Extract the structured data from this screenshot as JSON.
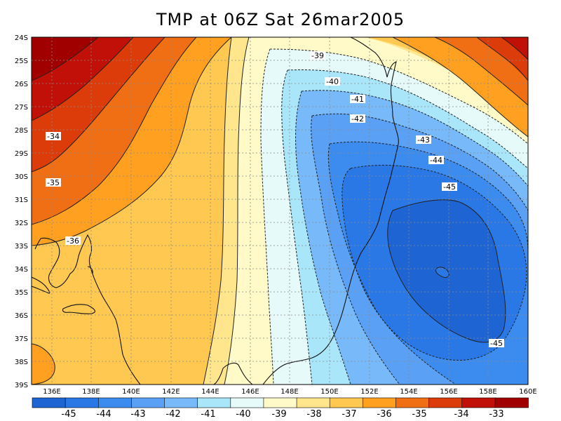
{
  "title": "TMP at 06Z Sat 26mar2005",
  "map": {
    "lat_labels": [
      "24S",
      "25S",
      "26S",
      "27S",
      "28S",
      "29S",
      "30S",
      "31S",
      "32S",
      "33S",
      "34S",
      "35S",
      "36S",
      "37S",
      "38S",
      "39S"
    ],
    "lon_labels": [
      "136E",
      "138E",
      "140E",
      "142E",
      "144E",
      "146E",
      "148E",
      "150E",
      "152E",
      "154E",
      "156E",
      "158E",
      "160E"
    ],
    "contour_labels": [
      {
        "text": "-39"
      },
      {
        "text": "-40"
      },
      {
        "text": "-41"
      },
      {
        "text": "-42"
      },
      {
        "text": "-43"
      },
      {
        "text": "-44"
      },
      {
        "text": "-45"
      },
      {
        "text": "-45"
      },
      {
        "text": "-34"
      },
      {
        "text": "-35"
      },
      {
        "text": "-36"
      }
    ],
    "region": {
      "lon_range": [
        135,
        160
      ],
      "lat_range": [
        -39,
        -24
      ]
    }
  },
  "colorbar": {
    "labels": [
      "-45",
      "-44",
      "-43",
      "-42",
      "-41",
      "-40",
      "-39",
      "-38",
      "-37",
      "-36",
      "-35",
      "-34",
      "-33"
    ],
    "colors": [
      "#1e64d2",
      "#2a78e6",
      "#3c8cf0",
      "#5aa0f5",
      "#78b9fa",
      "#aae6fa",
      "#e6fafa",
      "#fffac8",
      "#ffe68c",
      "#ffc850",
      "#ffa020",
      "#f06e14",
      "#dc3c0a",
      "#c01008",
      "#a00000"
    ]
  },
  "colors": {
    "c_m45": "#1e64d2",
    "c_m44": "#2a78e6",
    "c_m43": "#3c8cf0",
    "c_m42": "#5aa0f5",
    "c_m41": "#78b9fa",
    "c_m40": "#aae6fa",
    "c_m39": "#e6fafa",
    "c_m38": "#fffac8",
    "c_m37": "#ffe68c",
    "c_m36": "#ffc850",
    "c_m35": "#ffa020",
    "c_m34": "#f06e14",
    "c_m33": "#dc3c0a",
    "c_m32": "#c01008",
    "c_m31": "#a00000"
  }
}
